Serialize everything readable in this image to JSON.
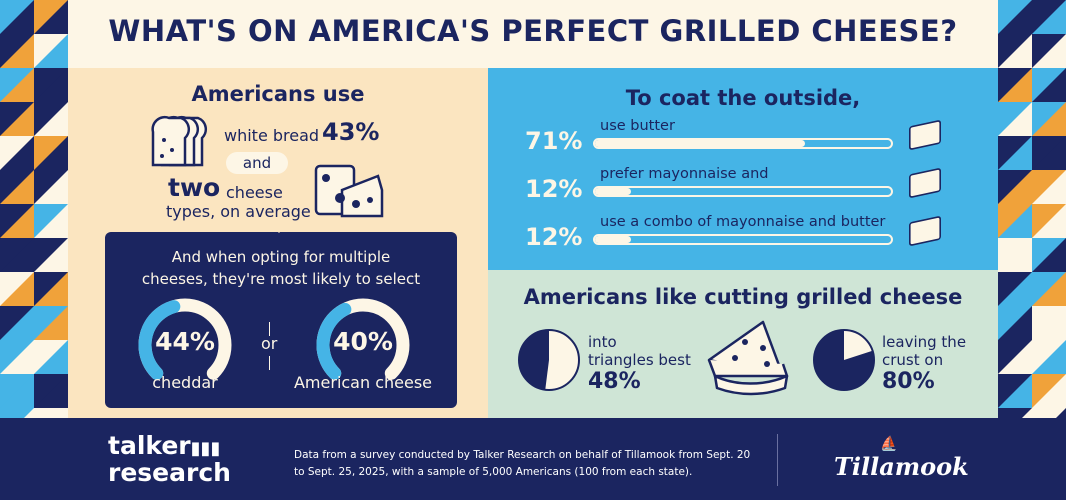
{
  "title": "WHAT'S ON AMERICA'S PERFECT GRILLED CHEESE?",
  "colors": {
    "navy": "#1b2560",
    "sky": "#45b4e6",
    "cream": "#fbe5c0",
    "mint": "#cfe5d6",
    "orange": "#f0a23a",
    "offwhite": "#fdf6e6"
  },
  "left": {
    "heading": "Americans use",
    "bread_label": "white bread",
    "bread_pct": "43%",
    "and": "and",
    "two": "two",
    "cheese_label": "cheese",
    "types": "types, on average",
    "box": {
      "line1": "And when opting for multiple",
      "line2": "cheeses, they're most likely to select",
      "or": "or",
      "gauges": [
        {
          "pct": "44%",
          "value": 44,
          "label": "cheddar"
        },
        {
          "pct": "40%",
          "value": 40,
          "label": "American cheese"
        }
      ]
    }
  },
  "coat": {
    "heading": "To coat the outside,",
    "items": [
      {
        "pct": "71%",
        "value": 71,
        "label": "use butter",
        "icon": "butter-icon"
      },
      {
        "pct": "12%",
        "value": 12,
        "label": "prefer mayonnaise and",
        "icon": "mayo-bottle-icon"
      },
      {
        "pct": "12%",
        "value": 12,
        "label": "use a combo of mayonnaise and butter",
        "icon": "mayo-butter-icon"
      }
    ]
  },
  "cutting": {
    "heading": "Americans like cutting grilled cheese",
    "triangles": {
      "line1": "into",
      "line2": "triangles best",
      "pct": "48%",
      "value": 48
    },
    "crust": {
      "line1": "leaving the",
      "line2": "crust on",
      "pct": "80%",
      "value": 80
    }
  },
  "footer": {
    "logo_left": "talker research",
    "note_line1": "Data from a survey conducted by Talker Research on behalf of Tillamook from Sept. 20",
    "note_line2": "to Sept. 25, 2025, with a sample of 5,000 Americans (100 from each state).",
    "logo_right": "Tillamook"
  }
}
